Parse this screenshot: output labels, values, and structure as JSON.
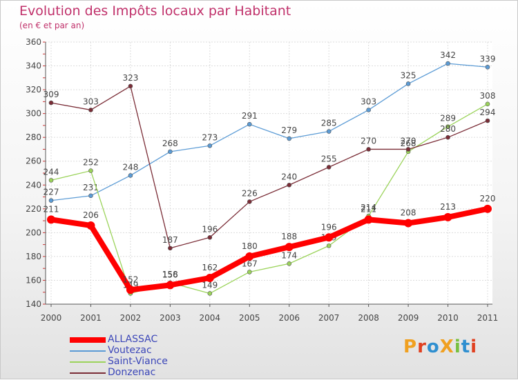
{
  "title": "Evolution des Impôts locaux par Habitant",
  "subtitle": "(en € et par an)",
  "brand": "ProXiti",
  "chart_data": {
    "type": "line",
    "x": [
      2000,
      2001,
      2002,
      2003,
      2004,
      2005,
      2006,
      2007,
      2008,
      2009,
      2010,
      2011
    ],
    "ylim": [
      140,
      360
    ],
    "yticks": [
      140,
      160,
      180,
      200,
      220,
      240,
      260,
      280,
      300,
      320,
      340,
      360
    ],
    "grid": true,
    "legend_position": "bottom-left",
    "series": [
      {
        "name": "Voutezac",
        "color": "#5b9bd5",
        "values": [
          227,
          231,
          248,
          268,
          273,
          291,
          279,
          285,
          303,
          325,
          342,
          339
        ]
      },
      {
        "name": "Saint-Viance",
        "color": "#9bd35a",
        "values": [
          244,
          252,
          149,
          158,
          149,
          167,
          174,
          189,
          214,
          268,
          289,
          308
        ]
      },
      {
        "name": "Donzenac",
        "color": "#7a2c36",
        "values": [
          309,
          303,
          323,
          187,
          196,
          226,
          240,
          255,
          270,
          270,
          280,
          294
        ]
      },
      {
        "name": "ALLASSAC",
        "color": "#ff0000",
        "values": [
          211,
          206,
          152,
          156,
          162,
          180,
          188,
          196,
          211,
          208,
          213,
          220
        ]
      }
    ]
  }
}
